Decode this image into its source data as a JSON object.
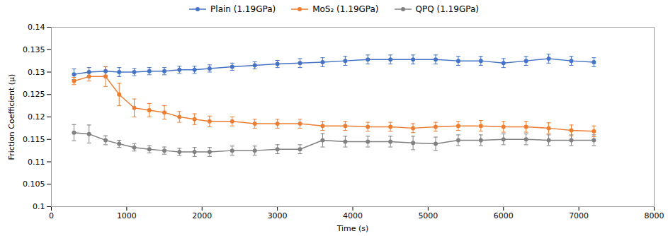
{
  "chart_data": {
    "type": "line",
    "xlabel": "Time (s)",
    "ylabel": "Friction Coefficient (μ)",
    "x": [
      300,
      500,
      720,
      900,
      1100,
      1300,
      1500,
      1700,
      1900,
      2100,
      2400,
      2700,
      3000,
      3300,
      3600,
      3900,
      4200,
      4500,
      4800,
      5100,
      5400,
      5700,
      6000,
      6300,
      6600,
      6900,
      7200
    ],
    "series": [
      {
        "name": "Plain (1.19GPa)",
        "color": "#4472C4",
        "values": [
          0.1295,
          0.13,
          0.1302,
          0.13,
          0.13,
          0.1302,
          0.1302,
          0.1305,
          0.1305,
          0.1308,
          0.1312,
          0.1315,
          0.1318,
          0.132,
          0.1322,
          0.1325,
          0.1328,
          0.1328,
          0.1328,
          0.1328,
          0.1325,
          0.1325,
          0.132,
          0.1325,
          0.133,
          0.1325,
          0.1322
        ],
        "yerr": [
          0.0012,
          0.001,
          0.001,
          0.001,
          0.0008,
          0.0008,
          0.0008,
          0.0008,
          0.0008,
          0.0008,
          0.0008,
          0.0008,
          0.0008,
          0.001,
          0.001,
          0.001,
          0.001,
          0.001,
          0.001,
          0.001,
          0.001,
          0.001,
          0.001,
          0.001,
          0.001,
          0.001,
          0.001
        ]
      },
      {
        "name": "MoS₂ (1.19GPa)",
        "color": "#ED7D31",
        "values": [
          0.128,
          0.129,
          0.129,
          0.125,
          0.122,
          0.1215,
          0.121,
          0.12,
          0.1195,
          0.119,
          0.119,
          0.1185,
          0.1185,
          0.1185,
          0.118,
          0.118,
          0.1178,
          0.1178,
          0.1175,
          0.1178,
          0.118,
          0.118,
          0.1178,
          0.1178,
          0.1175,
          0.117,
          0.1168
        ],
        "yerr": [
          0.0008,
          0.001,
          0.0022,
          0.0025,
          0.002,
          0.0015,
          0.0015,
          0.0012,
          0.0012,
          0.0012,
          0.001,
          0.001,
          0.001,
          0.001,
          0.001,
          0.001,
          0.001,
          0.001,
          0.001,
          0.001,
          0.001,
          0.0012,
          0.0012,
          0.0012,
          0.0012,
          0.0012,
          0.0012
        ]
      },
      {
        "name": "QPQ (1.19GPa)",
        "color": "#808080",
        "values": [
          0.1165,
          0.1162,
          0.1148,
          0.114,
          0.1132,
          0.1128,
          0.1125,
          0.1122,
          0.1122,
          0.1122,
          0.1125,
          0.1125,
          0.1128,
          0.1128,
          0.1148,
          0.1145,
          0.1145,
          0.1145,
          0.1142,
          0.114,
          0.1148,
          0.1148,
          0.115,
          0.115,
          0.1148,
          0.1148,
          0.1148
        ],
        "yerr": [
          0.0018,
          0.002,
          0.001,
          0.0008,
          0.0008,
          0.0008,
          0.0008,
          0.0008,
          0.001,
          0.001,
          0.001,
          0.001,
          0.001,
          0.001,
          0.0015,
          0.0012,
          0.0012,
          0.0012,
          0.0015,
          0.0015,
          0.0012,
          0.0012,
          0.0012,
          0.0012,
          0.0012,
          0.0012,
          0.0012
        ]
      }
    ],
    "xlim": [
      0,
      8000
    ],
    "ylim": [
      0.1,
      0.14
    ],
    "xticks": [
      0,
      1000,
      2000,
      3000,
      4000,
      5000,
      6000,
      7000,
      8000
    ],
    "yticks": [
      0.1,
      0.105,
      0.11,
      0.115,
      0.12,
      0.125,
      0.13,
      0.135,
      0.14
    ],
    "marker": "circle",
    "grid": false,
    "legend": "top"
  }
}
